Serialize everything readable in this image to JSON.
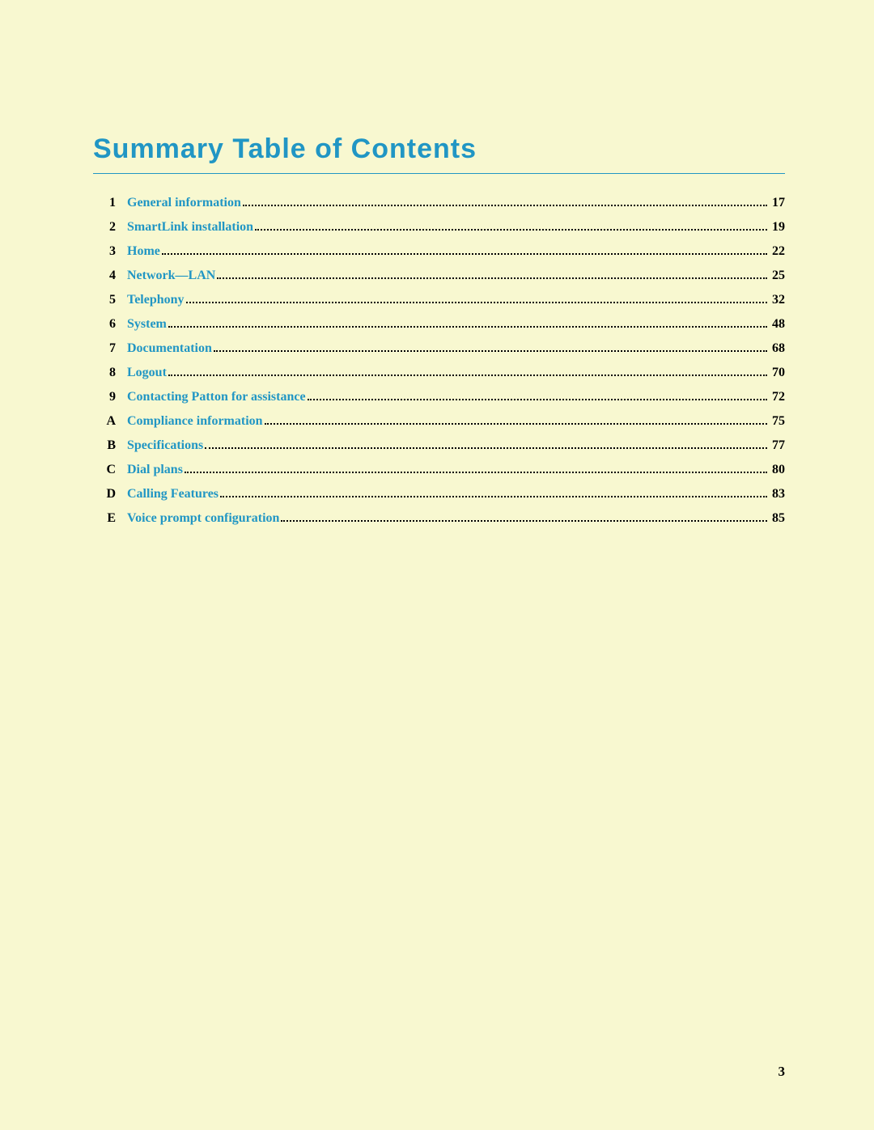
{
  "title": "Summary Table of Contents",
  "title_color": "#2196c4",
  "rule_color": "#2196c4",
  "link_color": "#2196c4",
  "text_color": "#000000",
  "background_color": "#f8f8d0",
  "page_number": "3",
  "entries": [
    {
      "num": "1",
      "label": "General information",
      "page": "17"
    },
    {
      "num": "2",
      "label": "SmartLink installation",
      "page": "19"
    },
    {
      "num": "3",
      "label": "Home",
      "page": "22"
    },
    {
      "num": "4",
      "label": "Network—LAN",
      "page": "25"
    },
    {
      "num": "5",
      "label": "Telephony",
      "page": "32"
    },
    {
      "num": "6",
      "label": "System",
      "page": "48"
    },
    {
      "num": "7",
      "label": "Documentation",
      "page": "68"
    },
    {
      "num": "8",
      "label": "Logout",
      "page": "70"
    },
    {
      "num": "9",
      "label": "Contacting Patton for assistance",
      "page": "72"
    },
    {
      "num": "A",
      "label": "Compliance information",
      "page": "75"
    },
    {
      "num": "B",
      "label": "Specifications",
      "page": "77"
    },
    {
      "num": "C",
      "label": "Dial plans",
      "page": "80"
    },
    {
      "num": "D",
      "label": "Calling Features",
      "page": "83"
    },
    {
      "num": "E",
      "label": "Voice prompt configuration",
      "page": "85"
    }
  ]
}
